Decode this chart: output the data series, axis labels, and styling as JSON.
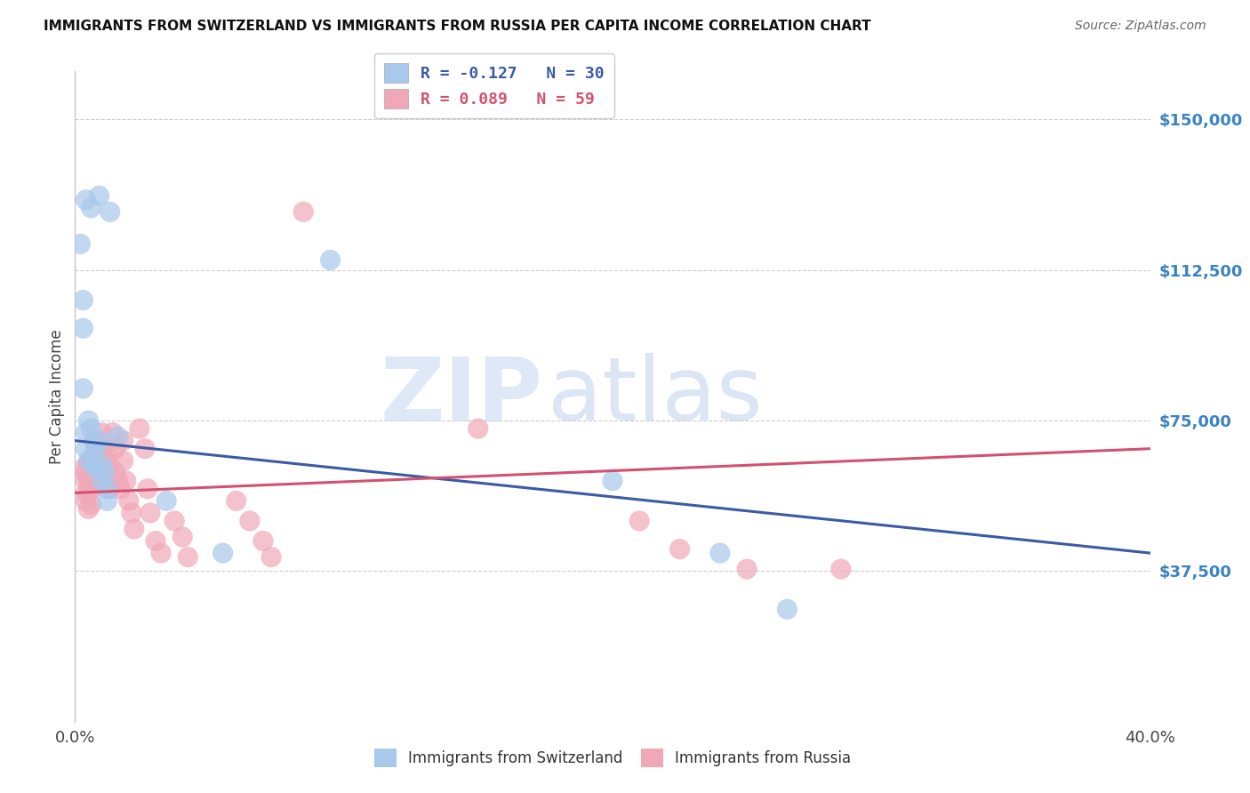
{
  "title": "IMMIGRANTS FROM SWITZERLAND VS IMMIGRANTS FROM RUSSIA PER CAPITA INCOME CORRELATION CHART",
  "source": "Source: ZipAtlas.com",
  "ylabel": "Per Capita Income",
  "xmin": 0.0,
  "xmax": 0.4,
  "ymin": 0,
  "ymax": 162000,
  "legend1_label": "R = -0.127   N = 30",
  "legend2_label": "R = 0.089   N = 59",
  "watermark_zip": "ZIP",
  "watermark_atlas": "atlas",
  "blue_color": "#A8C8EC",
  "pink_color": "#F0A8B8",
  "blue_line_color": "#3B5BA5",
  "pink_line_color": "#D45070",
  "axis_label_color": "#3B82C4",
  "blue_line_x": [
    0.0,
    0.4
  ],
  "blue_line_y": [
    70000,
    42000
  ],
  "pink_line_x": [
    0.0,
    0.4
  ],
  "pink_line_y": [
    57000,
    68000
  ],
  "switzerland_x": [
    0.004,
    0.006,
    0.009,
    0.013,
    0.002,
    0.003,
    0.003,
    0.003,
    0.004,
    0.004,
    0.005,
    0.005,
    0.006,
    0.007,
    0.007,
    0.008,
    0.008,
    0.009,
    0.01,
    0.01,
    0.011,
    0.012,
    0.012,
    0.016,
    0.034,
    0.055,
    0.095,
    0.2,
    0.24,
    0.265
  ],
  "switzerland_y": [
    130000,
    128000,
    131000,
    127000,
    119000,
    98000,
    83000,
    105000,
    72000,
    68000,
    65000,
    75000,
    73000,
    64000,
    67000,
    63000,
    69000,
    70000,
    60000,
    64000,
    62000,
    58000,
    55000,
    71000,
    55000,
    42000,
    115000,
    60000,
    42000,
    28000
  ],
  "russia_x": [
    0.003,
    0.004,
    0.004,
    0.004,
    0.004,
    0.005,
    0.005,
    0.005,
    0.005,
    0.006,
    0.006,
    0.006,
    0.006,
    0.007,
    0.007,
    0.007,
    0.008,
    0.008,
    0.009,
    0.009,
    0.01,
    0.01,
    0.01,
    0.011,
    0.011,
    0.012,
    0.012,
    0.013,
    0.013,
    0.014,
    0.015,
    0.015,
    0.016,
    0.017,
    0.018,
    0.018,
    0.019,
    0.02,
    0.021,
    0.022,
    0.024,
    0.026,
    0.027,
    0.028,
    0.03,
    0.032,
    0.037,
    0.04,
    0.042,
    0.06,
    0.065,
    0.07,
    0.073,
    0.085,
    0.15,
    0.21,
    0.225,
    0.25,
    0.285
  ],
  "russia_y": [
    63000,
    62000,
    60000,
    57000,
    55000,
    64000,
    60000,
    57000,
    53000,
    65000,
    60000,
    58000,
    54000,
    70000,
    66000,
    62000,
    68000,
    62000,
    63000,
    60000,
    72000,
    67000,
    62000,
    65000,
    60000,
    68000,
    62000,
    64000,
    58000,
    72000,
    68000,
    62000,
    60000,
    58000,
    70000,
    65000,
    60000,
    55000,
    52000,
    48000,
    73000,
    68000,
    58000,
    52000,
    45000,
    42000,
    50000,
    46000,
    41000,
    55000,
    50000,
    45000,
    41000,
    127000,
    73000,
    50000,
    43000,
    38000,
    38000
  ]
}
